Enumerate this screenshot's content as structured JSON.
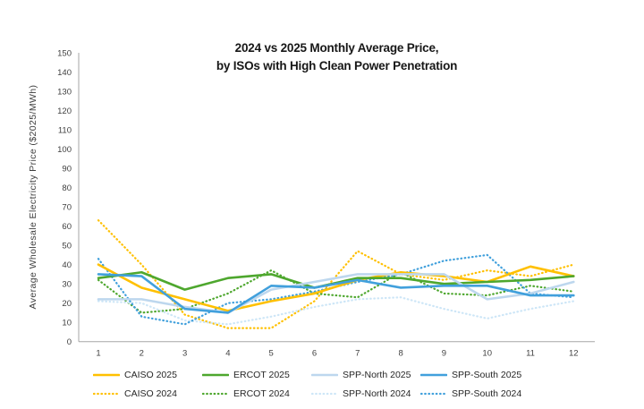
{
  "chart": {
    "title_line1": "2024 vs 2025 Monthly Average Price,",
    "title_line2": "by ISOs with High Clean Power Penetration",
    "ylabel": "Average Wholesale Electricity Price ($2025/MWh)"
  },
  "chart_data": {
    "type": "line",
    "title": "2024 vs 2025 Monthly Average Price, by ISOs with High Clean Power Penetration",
    "xlabel": "",
    "ylabel": "Average Wholesale Electricity Price ($2025/MWh)",
    "x": [
      1,
      2,
      3,
      4,
      5,
      6,
      7,
      8,
      9,
      10,
      11,
      12
    ],
    "ylim": [
      0,
      150
    ],
    "ytick_step": 10,
    "grid": false,
    "legend_position": "bottom",
    "axis_color": "#a6a6a6",
    "series": [
      {
        "name": "CAISO 2025",
        "color": "#FFC000",
        "style": "solid",
        "values": [
          40,
          28,
          22,
          16,
          21,
          25,
          32,
          36,
          34,
          31,
          39,
          34
        ]
      },
      {
        "name": "ERCOT 2025",
        "color": "#4EA72E",
        "style": "solid",
        "values": [
          33,
          36,
          27,
          33,
          35,
          28,
          33,
          33,
          30,
          31,
          32,
          34
        ]
      },
      {
        "name": "SPP-North 2025",
        "color": "#BDD7EE",
        "style": "solid",
        "values": [
          22,
          22,
          18,
          15,
          27,
          31,
          35,
          35,
          35,
          22,
          25,
          31
        ]
      },
      {
        "name": "SPP-South 2025",
        "color": "#41A0DC",
        "style": "solid",
        "values": [
          35,
          34,
          17,
          15,
          29,
          28,
          32,
          28,
          29,
          29,
          24,
          24
        ]
      },
      {
        "name": "CAISO 2024",
        "color": "#FFC000",
        "style": "dotted",
        "values": [
          63,
          40,
          14,
          7,
          7,
          21,
          47,
          35,
          32,
          37,
          34,
          40
        ]
      },
      {
        "name": "ERCOT 2024",
        "color": "#4EA72E",
        "style": "dotted",
        "values": [
          32,
          15,
          17,
          25,
          37,
          25,
          23,
          36,
          25,
          24,
          29,
          26
        ]
      },
      {
        "name": "SPP-North 2024",
        "color": "#CDE6F7",
        "style": "dotted",
        "values": [
          21,
          20,
          11,
          9,
          13,
          18,
          22,
          23,
          17,
          12,
          17,
          21
        ]
      },
      {
        "name": "SPP-South 2024",
        "color": "#41A0DC",
        "style": "dotted",
        "values": [
          43,
          13,
          9,
          20,
          22,
          26,
          31,
          35,
          42,
          45,
          25,
          23
        ]
      }
    ]
  }
}
